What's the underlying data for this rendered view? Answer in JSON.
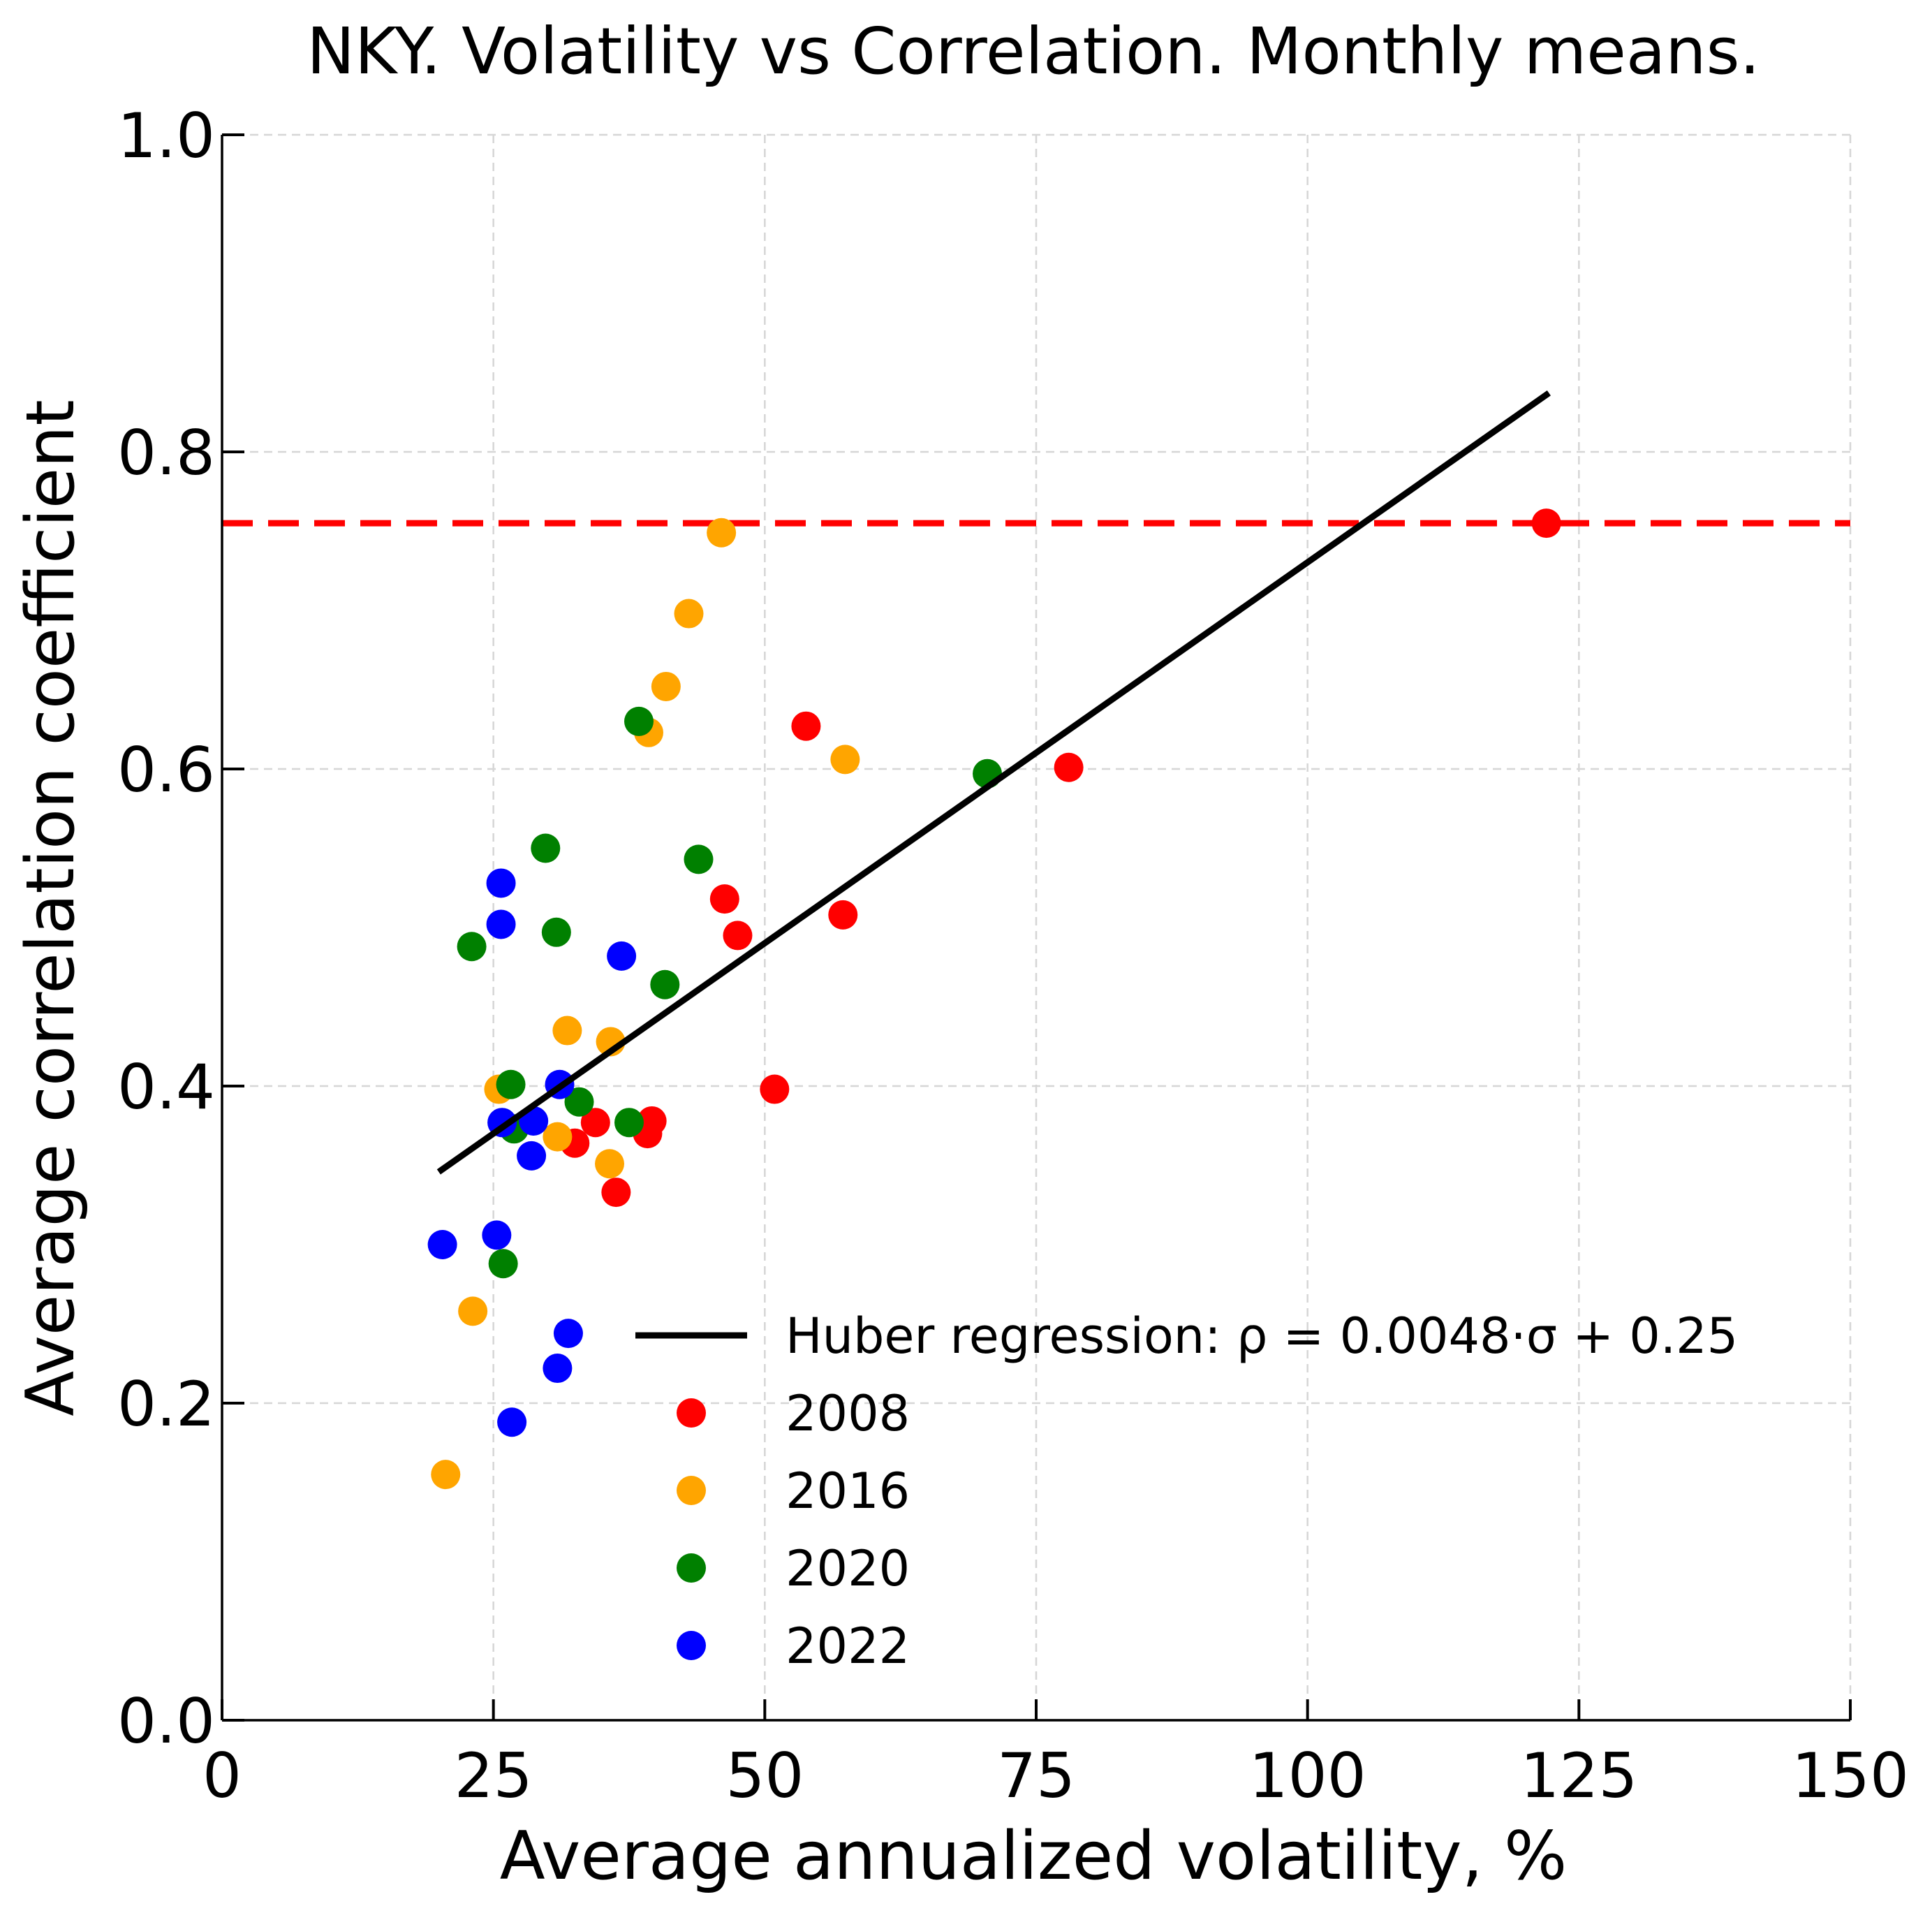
{
  "chart_data": {
    "type": "scatter",
    "title": "NKY. Volatility vs Correlation. Monthly means.",
    "xlabel": "Average annualized volatility, %",
    "ylabel": "Average correlation coefficient",
    "xlim": [
      0,
      150
    ],
    "ylim": [
      0,
      1.0
    ],
    "x_ticks": [
      "0",
      "25",
      "50",
      "75",
      "100",
      "125",
      "150"
    ],
    "y_ticks": [
      "0.0",
      "0.2",
      "0.4",
      "0.6",
      "0.8",
      "1.0"
    ],
    "grid": true,
    "legend_position": "lower-right",
    "reference_line": {
      "y": 0.755,
      "color": "#ff0000",
      "style": "dashed"
    },
    "regression": {
      "name": "Huber regression: ρ = 0.0048·σ + 0.25",
      "x": [
        20.2,
        122.0
      ],
      "y": [
        0.347,
        0.836
      ],
      "color": "#000000"
    },
    "series": [
      {
        "name": "2008",
        "color": "#ff0000",
        "points": [
          [
            122.0,
            0.755
          ],
          [
            78.0,
            0.601
          ],
          [
            53.8,
            0.627
          ],
          [
            57.2,
            0.508
          ],
          [
            46.3,
            0.518
          ],
          [
            47.5,
            0.495
          ],
          [
            50.9,
            0.398
          ],
          [
            39.6,
            0.378
          ],
          [
            39.2,
            0.37
          ],
          [
            34.4,
            0.377
          ],
          [
            32.5,
            0.364
          ],
          [
            36.3,
            0.333
          ]
        ]
      },
      {
        "name": "2016",
        "color": "#ffa500",
        "points": [
          [
            46.0,
            0.749
          ],
          [
            43.0,
            0.698
          ],
          [
            40.9,
            0.652
          ],
          [
            39.3,
            0.623
          ],
          [
            57.4,
            0.606
          ],
          [
            31.8,
            0.435
          ],
          [
            35.8,
            0.428
          ],
          [
            25.5,
            0.398
          ],
          [
            30.9,
            0.368
          ],
          [
            35.7,
            0.351
          ],
          [
            23.1,
            0.258
          ],
          [
            20.6,
            0.155
          ]
        ]
      },
      {
        "name": "2020",
        "color": "#008000",
        "points": [
          [
            70.5,
            0.597
          ],
          [
            38.4,
            0.63
          ],
          [
            43.9,
            0.543
          ],
          [
            29.8,
            0.55
          ],
          [
            30.8,
            0.497
          ],
          [
            23.0,
            0.488
          ],
          [
            40.8,
            0.464
          ],
          [
            26.6,
            0.401
          ],
          [
            32.9,
            0.39
          ],
          [
            37.5,
            0.377
          ],
          [
            26.9,
            0.373
          ],
          [
            25.9,
            0.288
          ]
        ]
      },
      {
        "name": "2022",
        "color": "#0000ff",
        "points": [
          [
            25.7,
            0.528
          ],
          [
            25.7,
            0.502
          ],
          [
            36.8,
            0.482
          ],
          [
            31.1,
            0.401
          ],
          [
            28.7,
            0.378
          ],
          [
            25.8,
            0.377
          ],
          [
            28.5,
            0.356
          ],
          [
            20.3,
            0.3
          ],
          [
            25.3,
            0.306
          ],
          [
            31.9,
            0.244
          ],
          [
            30.9,
            0.222
          ],
          [
            26.7,
            0.188
          ]
        ]
      }
    ]
  }
}
